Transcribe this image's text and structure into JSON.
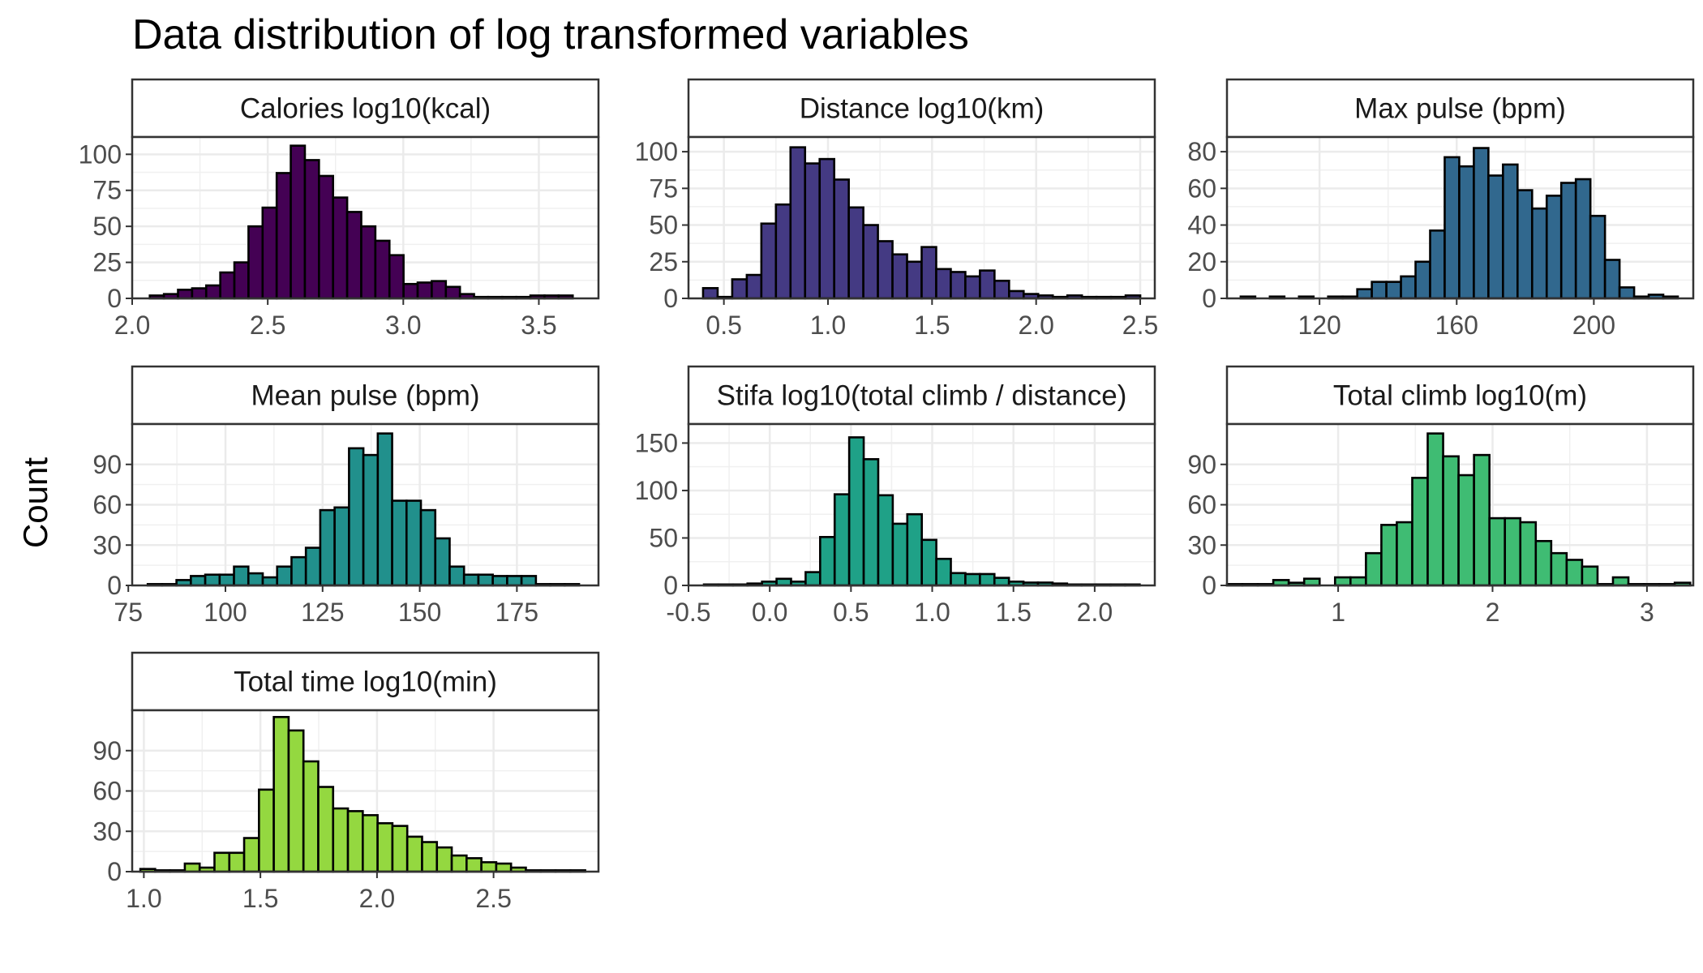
{
  "chart_data": {
    "type": "bar",
    "title": "Data distribution of log transformed variables",
    "ylabel": "Count",
    "xlabel": "",
    "grid": true,
    "legend": "none",
    "panels": [
      {
        "strip": "Calories log10(kcal)",
        "color": "#440154",
        "xlim": [
          2.0,
          3.72
        ],
        "ylim": [
          0,
          112
        ],
        "xticks": [
          2.0,
          2.5,
          3.0,
          3.5
        ],
        "xtick_labels": [
          "2.0",
          "2.5",
          "3.0",
          "3.5"
        ],
        "yticks": [
          0,
          25,
          50,
          75,
          100
        ],
        "ytick_labels": [
          "0",
          "25",
          "50",
          "75",
          "100"
        ],
        "bin_start": 2.065,
        "bin_width": 0.052,
        "values": [
          2,
          3,
          6,
          7,
          9,
          18,
          25,
          50,
          63,
          87,
          106,
          96,
          85,
          70,
          60,
          50,
          40,
          30,
          10,
          11,
          12,
          8,
          3,
          1,
          1,
          1,
          1,
          2,
          2,
          2
        ]
      },
      {
        "strip": "Distance log10(km)",
        "color": "#443A83",
        "xlim": [
          0.33,
          2.57
        ],
        "ylim": [
          0,
          110
        ],
        "xticks": [
          0.5,
          1.0,
          1.5,
          2.0,
          2.5
        ],
        "xtick_labels": [
          "0.5",
          "1.0",
          "1.5",
          "2.0",
          "2.5"
        ],
        "yticks": [
          0,
          25,
          50,
          75,
          100
        ],
        "ytick_labels": [
          "0",
          "25",
          "50",
          "75",
          "100"
        ],
        "bin_start": 0.4,
        "bin_width": 0.07,
        "values": [
          7,
          1,
          13,
          16,
          51,
          64,
          103,
          92,
          95,
          81,
          62,
          50,
          39,
          30,
          25,
          35,
          20,
          18,
          15,
          19,
          12,
          5,
          3,
          2,
          1,
          2,
          1,
          1,
          1,
          2
        ]
      },
      {
        "strip": "Max pulse (bpm)",
        "color": "#31688E",
        "xlim": [
          93,
          229
        ],
        "ylim": [
          0,
          88
        ],
        "xticks": [
          120,
          160,
          200
        ],
        "xtick_labels": [
          "120",
          "160",
          "200"
        ],
        "yticks": [
          0,
          20,
          40,
          60,
          80
        ],
        "ytick_labels": [
          "0",
          "20",
          "40",
          "60",
          "80"
        ],
        "bin_start": 97,
        "bin_width": 4.25,
        "values": [
          1,
          0,
          1,
          0,
          1,
          0,
          1,
          1,
          5,
          9,
          9,
          12,
          20,
          37,
          77,
          72,
          82,
          67,
          73,
          59,
          49,
          56,
          63,
          65,
          45,
          21,
          6,
          1,
          2,
          1
        ]
      },
      {
        "strip": "Mean pulse (bpm)",
        "color": "#21908C",
        "xlim": [
          76,
          196
        ],
        "ylim": [
          0,
          120
        ],
        "xticks": [
          75,
          100,
          125,
          150,
          175
        ],
        "xtick_labels": [
          "75",
          "100",
          "125",
          "150",
          "175"
        ],
        "yticks": [
          0,
          30,
          60,
          90
        ],
        "ytick_labels": [
          "0",
          "30",
          "60",
          "90"
        ],
        "bin_start": 80,
        "bin_width": 3.7,
        "values": [
          1,
          1,
          4,
          7,
          8,
          8,
          14,
          9,
          6,
          14,
          21,
          28,
          56,
          58,
          102,
          97,
          113,
          63,
          63,
          56,
          35,
          14,
          8,
          8,
          7,
          7,
          7,
          1,
          1,
          1
        ]
      },
      {
        "strip": "Stifa log10(total climb / distance)",
        "color": "#1FA187",
        "xlim": [
          -0.5,
          2.37
        ],
        "ylim": [
          0,
          170
        ],
        "xticks": [
          -0.5,
          0.0,
          0.5,
          1.0,
          1.5,
          2.0
        ],
        "xtick_labels": [
          "-0.5",
          "0.0",
          "0.5",
          "1.0",
          "1.5",
          "2.0"
        ],
        "yticks": [
          0,
          50,
          100,
          150
        ],
        "ytick_labels": [
          "0",
          "50",
          "100",
          "150"
        ],
        "bin_start": -0.405,
        "bin_width": 0.0894,
        "values": [
          1,
          1,
          1,
          2,
          4,
          7,
          4,
          14,
          51,
          96,
          156,
          133,
          95,
          65,
          75,
          48,
          28,
          13,
          12,
          12,
          8,
          4,
          3,
          3,
          2,
          1,
          1,
          1,
          1,
          1
        ]
      },
      {
        "strip": "Total climb log10(m)",
        "color": "#3FBC73",
        "xlim": [
          0.28,
          3.3
        ],
        "ylim": [
          0,
          120
        ],
        "xticks": [
          1,
          2,
          3
        ],
        "xtick_labels": [
          "1",
          "2",
          "3"
        ],
        "yticks": [
          0,
          30,
          60,
          90
        ],
        "ytick_labels": [
          "0",
          "30",
          "60",
          "90"
        ],
        "bin_start": 0.28,
        "bin_width": 0.1,
        "values": [
          1,
          1,
          1,
          4,
          2,
          5,
          0,
          6,
          6,
          24,
          45,
          47,
          80,
          113,
          96,
          82,
          97,
          50,
          50,
          47,
          33,
          24,
          19,
          14,
          1,
          6,
          1,
          1,
          1,
          2
        ]
      },
      {
        "strip": "Total time log10(min)",
        "color": "#94D840",
        "xlim": [
          0.95,
          2.95
        ],
        "ylim": [
          0,
          120
        ],
        "xticks": [
          1.0,
          1.5,
          2.0,
          2.5
        ],
        "xtick_labels": [
          "1.0",
          "1.5",
          "2.0",
          "2.5"
        ],
        "yticks": [
          0,
          30,
          60,
          90
        ],
        "ytick_labels": [
          "0",
          "30",
          "60",
          "90"
        ],
        "bin_start": 0.985,
        "bin_width": 0.0636,
        "values": [
          2,
          1,
          1,
          6,
          3,
          14,
          14,
          25,
          61,
          115,
          105,
          82,
          63,
          47,
          45,
          42,
          36,
          34,
          26,
          22,
          18,
          12,
          10,
          7,
          6,
          3,
          1,
          1,
          1,
          1
        ]
      }
    ]
  }
}
